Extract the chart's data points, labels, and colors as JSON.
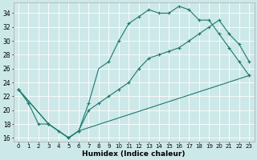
{
  "xlabel": "Humidex (Indice chaleur)",
  "bg_color": "#cde8e8",
  "grid_color": "#ffffff",
  "line_color": "#1a7a6e",
  "xlim": [
    -0.5,
    23.5
  ],
  "ylim": [
    15.5,
    35.5
  ],
  "xticks": [
    0,
    1,
    2,
    3,
    4,
    5,
    6,
    7,
    8,
    9,
    10,
    11,
    12,
    13,
    14,
    15,
    16,
    17,
    18,
    19,
    20,
    21,
    22,
    23
  ],
  "yticks": [
    16,
    18,
    20,
    22,
    24,
    26,
    28,
    30,
    32,
    34
  ],
  "line1_x": [
    0,
    1,
    2,
    3,
    4,
    5,
    6,
    7,
    8,
    9,
    10,
    11,
    12,
    13,
    14,
    15,
    16,
    17,
    18,
    19,
    20,
    21,
    22,
    23
  ],
  "line1_y": [
    23,
    21,
    18,
    18,
    17,
    16,
    17,
    21,
    26,
    27,
    30,
    32.5,
    33.5,
    34.5,
    34,
    34,
    35,
    34.5,
    33,
    33,
    31,
    29,
    27,
    25
  ],
  "line1_markers_x": [
    0,
    1,
    2,
    3,
    4,
    5,
    6,
    7,
    9,
    10,
    11,
    12,
    13,
    14,
    15,
    16,
    17,
    18,
    19,
    20,
    21,
    22,
    23
  ],
  "line1_markers_y": [
    23,
    21,
    18,
    18,
    17,
    16,
    17,
    21,
    27,
    30,
    32.5,
    33.5,
    34.5,
    34,
    34,
    35,
    34.5,
    33,
    33,
    31,
    29,
    27,
    25
  ],
  "line2_x": [
    0,
    3,
    5,
    6,
    7,
    8,
    9,
    10,
    11,
    12,
    13,
    14,
    15,
    16,
    17,
    18,
    19,
    20,
    21,
    22,
    23
  ],
  "line2_y": [
    23,
    18,
    16,
    17,
    20,
    21,
    22,
    23,
    24,
    26,
    27.5,
    28,
    28.5,
    29,
    30,
    31,
    32,
    33,
    31,
    29.5,
    27
  ],
  "line2_markers_x": [
    0,
    3,
    5,
    6,
    7,
    8,
    9,
    10,
    11,
    12,
    13,
    14,
    15,
    16,
    17,
    18,
    19,
    20,
    21,
    22,
    23
  ],
  "line2_markers_y": [
    23,
    18,
    16,
    17,
    20,
    21,
    22,
    23,
    24,
    26,
    27.5,
    28,
    28.5,
    29,
    30,
    31,
    32,
    33,
    31,
    29.5,
    27
  ],
  "line3_x": [
    0,
    3,
    5,
    6,
    23
  ],
  "line3_y": [
    23,
    18,
    16,
    17,
    25
  ],
  "line3_markers_x": [
    0,
    3,
    5,
    6,
    23
  ],
  "line3_markers_y": [
    23,
    18,
    16,
    17,
    25
  ]
}
